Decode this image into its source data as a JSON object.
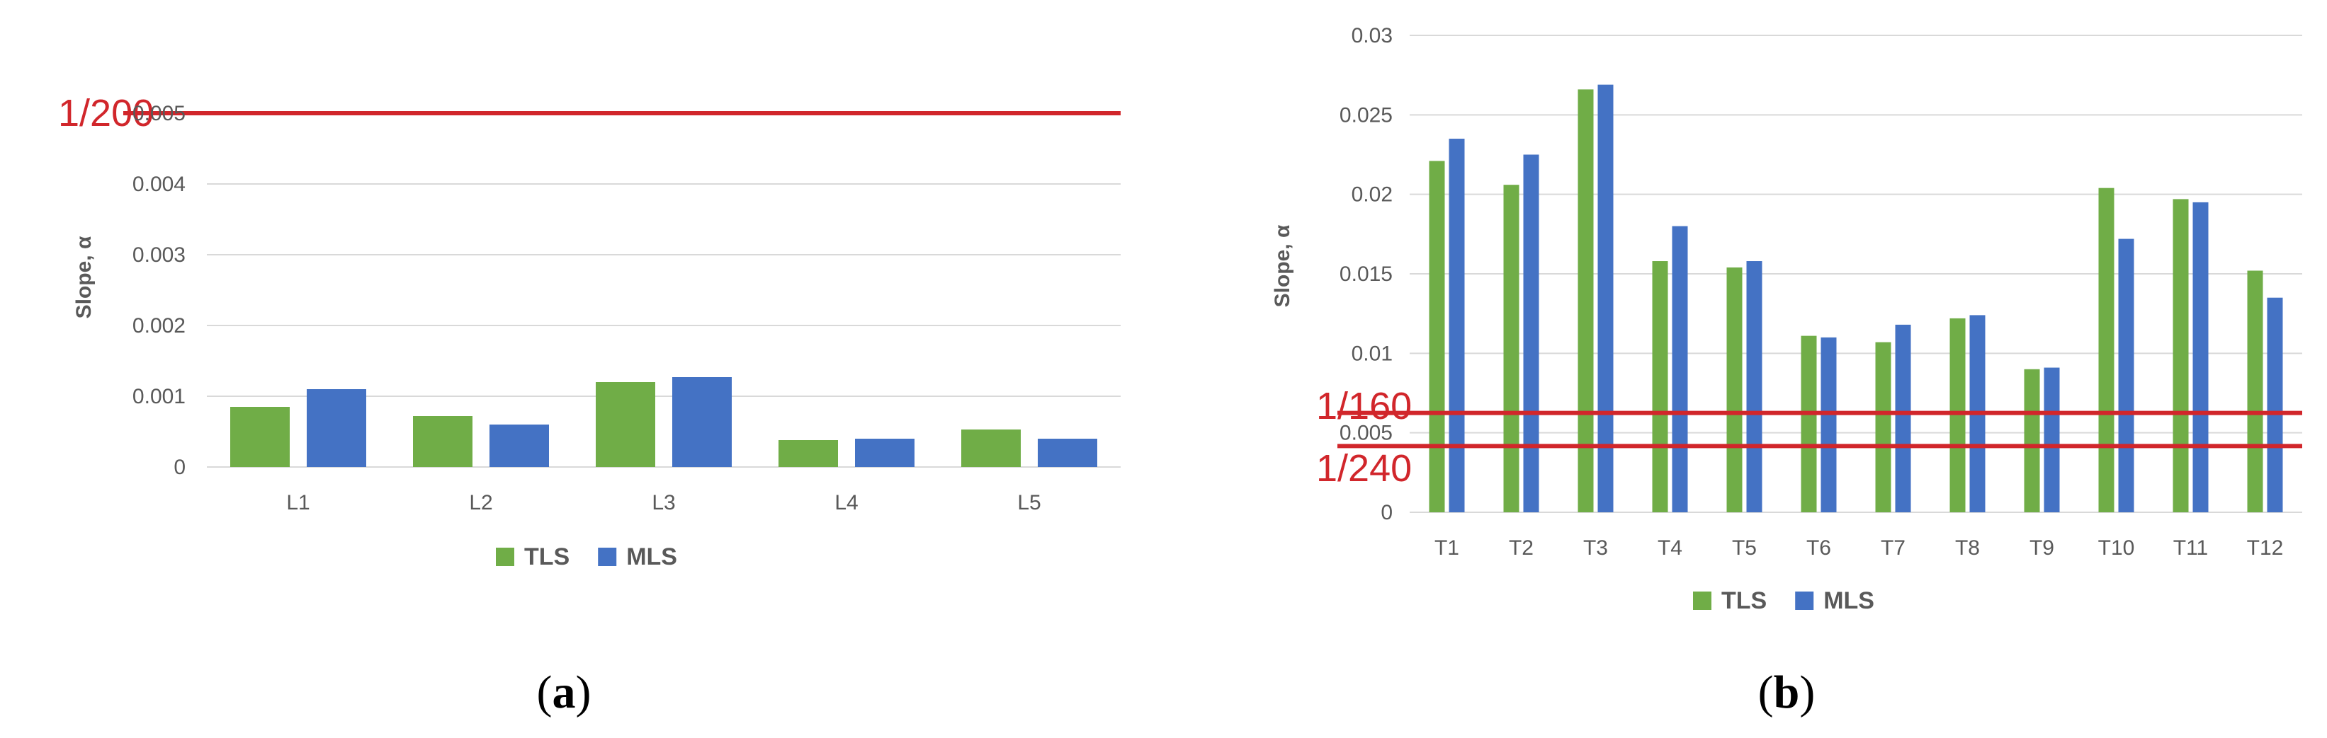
{
  "colors": {
    "tls": "#70ad47",
    "mls": "#4472c4",
    "ref": "#d1262b",
    "grid": "#d9d9d9",
    "text": "#595959"
  },
  "chart_data": [
    {
      "type": "bar",
      "panel": "a",
      "panel_label": {
        "open": "(",
        "letter": "a",
        "close": ")"
      },
      "ylabel": "Slope, α",
      "categories": [
        "L1",
        "L2",
        "L3",
        "L4",
        "L5"
      ],
      "series": [
        {
          "name": "TLS",
          "values": [
            0.00085,
            0.00072,
            0.0012,
            0.00038,
            0.00053
          ]
        },
        {
          "name": "MLS",
          "values": [
            0.0011,
            0.0006,
            0.00127,
            0.0004,
            0.0004
          ]
        }
      ],
      "ylim": [
        0,
        0.005
      ],
      "yticks": [
        "0",
        "0.001",
        "0.002",
        "0.003",
        "0.004",
        "0.005"
      ],
      "reference_lines": [
        {
          "label": "1/200",
          "value": 0.005
        }
      ],
      "grid": true,
      "legend": "bottom"
    },
    {
      "type": "bar",
      "panel": "b",
      "panel_label": {
        "open": "(",
        "letter": "b",
        "close": ")"
      },
      "ylabel": "Slope, α",
      "categories": [
        "T1",
        "T2",
        "T3",
        "T4",
        "T5",
        "T6",
        "T7",
        "T8",
        "T9",
        "T10",
        "T11",
        "T12"
      ],
      "series": [
        {
          "name": "TLS",
          "values": [
            0.0221,
            0.0206,
            0.0266,
            0.0158,
            0.0154,
            0.0111,
            0.0107,
            0.0122,
            0.009,
            0.0204,
            0.0197,
            0.0152
          ]
        },
        {
          "name": "MLS",
          "values": [
            0.0235,
            0.0225,
            0.0269,
            0.018,
            0.0158,
            0.011,
            0.0118,
            0.0124,
            0.0091,
            0.0172,
            0.0195,
            0.0135
          ]
        }
      ],
      "ylim": [
        0,
        0.03
      ],
      "yticks": [
        "0",
        "0.005",
        "0.01",
        "0.015",
        "0.02",
        "0.025",
        "0.03"
      ],
      "reference_lines": [
        {
          "label": "1/160",
          "value": 0.00625
        },
        {
          "label": "1/240",
          "value": 0.00417
        }
      ],
      "grid": true,
      "legend": "bottom"
    }
  ]
}
